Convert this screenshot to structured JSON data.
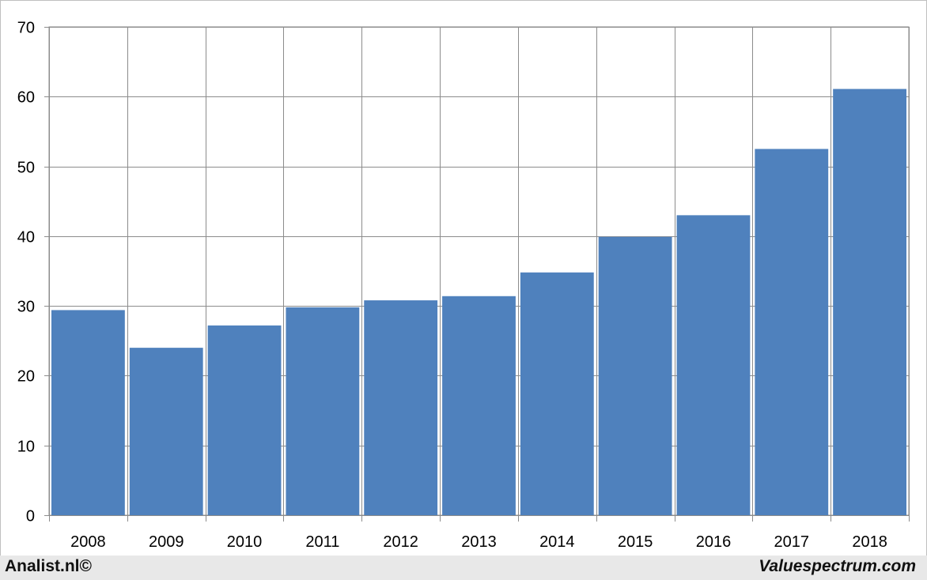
{
  "chart_data": {
    "type": "bar",
    "categories": [
      "2008",
      "2009",
      "2010",
      "2011",
      "2012",
      "2013",
      "2014",
      "2015",
      "2016",
      "2017",
      "2018"
    ],
    "values": [
      29.4,
      24.0,
      27.2,
      29.8,
      30.8,
      31.4,
      34.8,
      39.9,
      43.0,
      52.5,
      61.1
    ],
    "yticks": [
      "0",
      "10",
      "20",
      "30",
      "40",
      "50",
      "60",
      "70"
    ],
    "ylim": [
      0,
      70
    ],
    "grid": true,
    "bar_color": "#4f81bd",
    "grid_color": "#8c8c8c",
    "title": "",
    "xlabel": "",
    "ylabel": ""
  },
  "footer": {
    "left_text": "Analist.nl©",
    "right_text": "Valuespectrum.com",
    "background": "#e8e8e8"
  }
}
